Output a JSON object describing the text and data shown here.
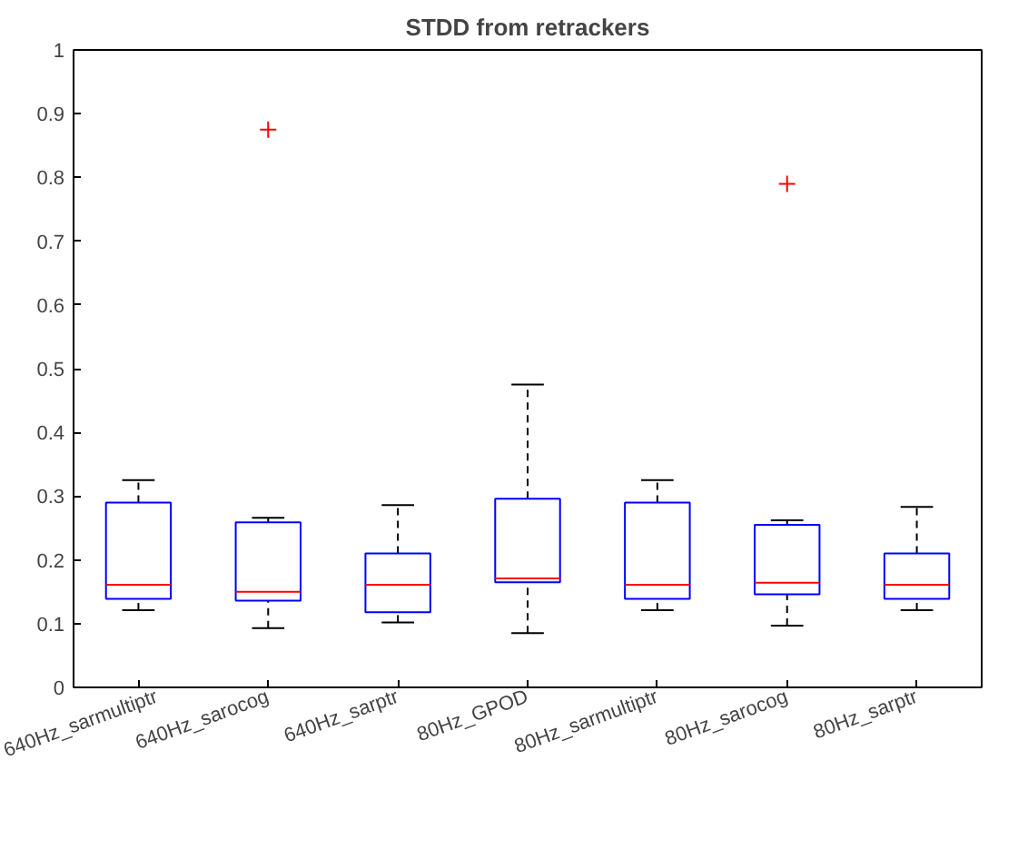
{
  "chart_data": {
    "type": "box",
    "title": "STDD from retrackers",
    "categories": [
      "640Hz_sarmultiptr",
      "640Hz_sarocog",
      "640Hz_sarptr",
      "80Hz_GPOD",
      "80Hz_sarmultiptr",
      "80Hz_sarocog",
      "80Hz_sarptr"
    ],
    "boxes": [
      {
        "low": 0.121,
        "q1": 0.139,
        "median": 0.161,
        "q3": 0.29,
        "high": 0.325
      },
      {
        "low": 0.093,
        "q1": 0.136,
        "median": 0.15,
        "q3": 0.259,
        "high": 0.266,
        "outliers": [
          0.875
        ]
      },
      {
        "low": 0.102,
        "q1": 0.118,
        "median": 0.161,
        "q3": 0.21,
        "high": 0.286
      },
      {
        "low": 0.085,
        "q1": 0.165,
        "median": 0.171,
        "q3": 0.296,
        "high": 0.475
      },
      {
        "low": 0.121,
        "q1": 0.139,
        "median": 0.161,
        "q3": 0.29,
        "high": 0.325
      },
      {
        "low": 0.097,
        "q1": 0.146,
        "median": 0.164,
        "q3": 0.255,
        "high": 0.262,
        "outliers": [
          0.79
        ]
      },
      {
        "low": 0.121,
        "q1": 0.139,
        "median": 0.161,
        "q3": 0.21,
        "high": 0.283
      }
    ],
    "color": "#0000ff",
    "ylim": [
      0,
      1
    ],
    "yticks": [
      0,
      0.1,
      0.2,
      0.3,
      0.4,
      0.5,
      0.6,
      0.7,
      0.8,
      0.9,
      1
    ],
    "grid": false
  }
}
